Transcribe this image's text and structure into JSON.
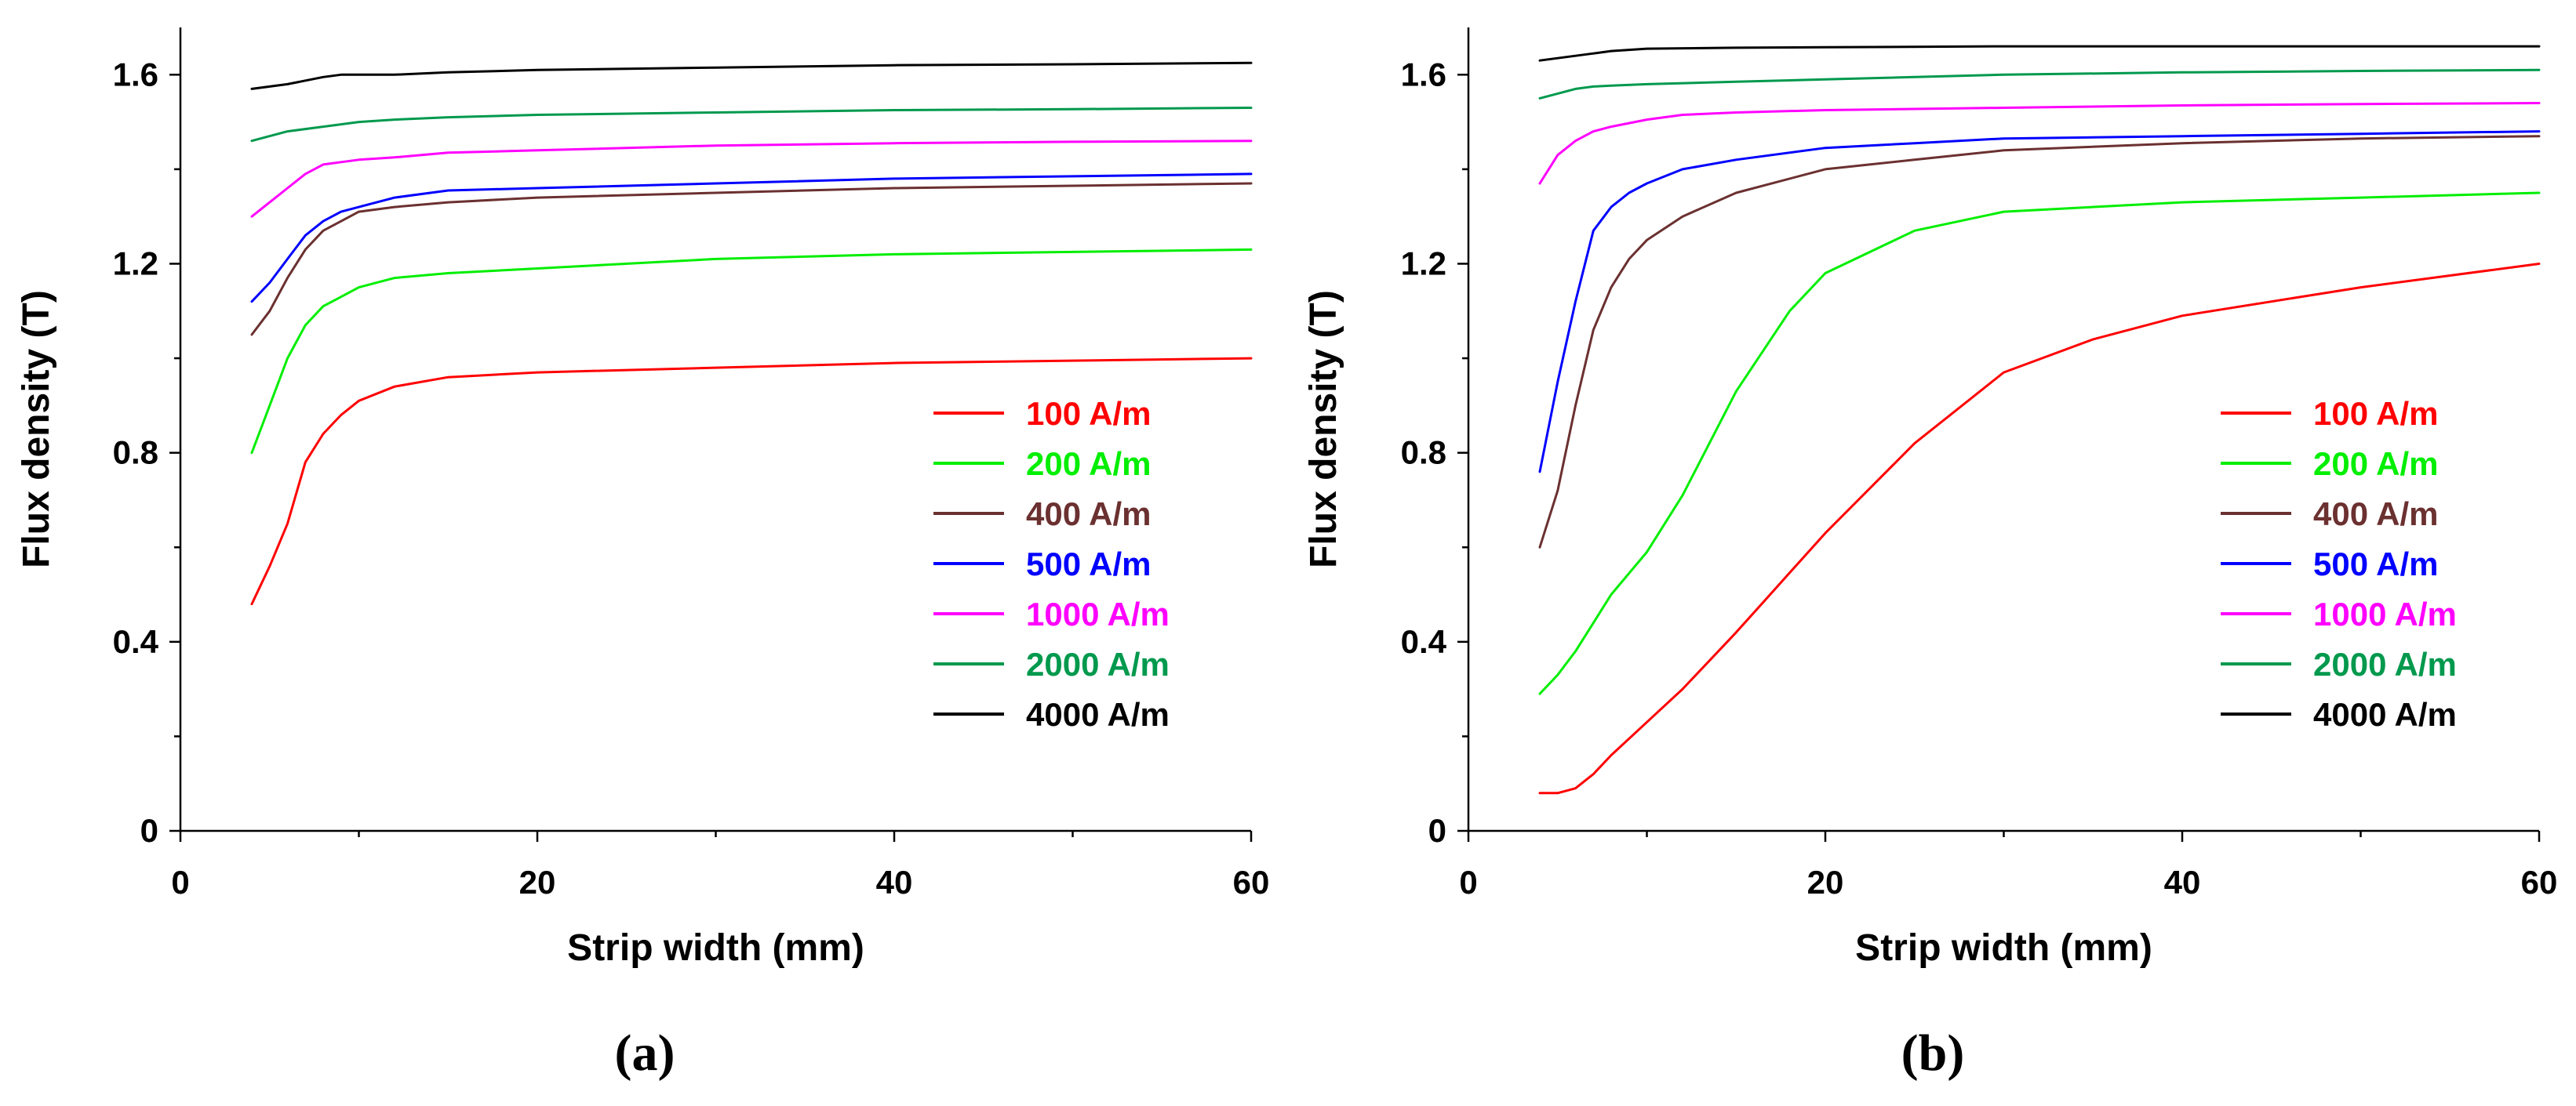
{
  "chart_data": [
    {
      "type": "line",
      "panel_label": "(a)",
      "xlabel": "Strip width (mm)",
      "ylabel": "Flux density (T)",
      "xlim": [
        0,
        60
      ],
      "ylim": [
        0,
        1.7
      ],
      "xticks": [
        0,
        20,
        40,
        60
      ],
      "xticks_minor": [
        10,
        30,
        50
      ],
      "yticks": [
        0,
        0.4,
        0.8,
        1.2,
        1.6
      ],
      "ytick_labels": [
        "0",
        "0.4",
        "0.8",
        "1.2",
        "1.6"
      ],
      "legend_position": "lower-right",
      "series": [
        {
          "name": "100 A/m",
          "color": "#ff0000",
          "x": [
            4,
            5,
            6,
            7,
            8,
            9,
            10,
            12,
            15,
            20,
            30,
            40,
            50,
            60
          ],
          "y": [
            0.48,
            0.56,
            0.65,
            0.78,
            0.84,
            0.88,
            0.91,
            0.94,
            0.96,
            0.97,
            0.98,
            0.99,
            0.995,
            1.0
          ]
        },
        {
          "name": "200 A/m",
          "color": "#00ee00",
          "x": [
            4,
            5,
            6,
            7,
            8,
            9,
            10,
            12,
            15,
            20,
            30,
            40,
            50,
            60
          ],
          "y": [
            0.8,
            0.9,
            1.0,
            1.07,
            1.11,
            1.13,
            1.15,
            1.17,
            1.18,
            1.19,
            1.21,
            1.22,
            1.225,
            1.23
          ]
        },
        {
          "name": "400 A/m",
          "color": "#6b3030",
          "x": [
            4,
            5,
            6,
            7,
            8,
            9,
            10,
            12,
            15,
            20,
            30,
            40,
            50,
            60
          ],
          "y": [
            1.05,
            1.1,
            1.17,
            1.23,
            1.27,
            1.29,
            1.31,
            1.32,
            1.33,
            1.34,
            1.35,
            1.36,
            1.365,
            1.37
          ]
        },
        {
          "name": "500 A/m",
          "color": "#0000ff",
          "x": [
            4,
            5,
            6,
            7,
            8,
            9,
            10,
            12,
            15,
            20,
            30,
            40,
            50,
            60
          ],
          "y": [
            1.12,
            1.16,
            1.21,
            1.26,
            1.29,
            1.31,
            1.32,
            1.34,
            1.355,
            1.36,
            1.37,
            1.38,
            1.385,
            1.39
          ]
        },
        {
          "name": "1000 A/m",
          "color": "#ff00ff",
          "x": [
            4,
            5,
            6,
            7,
            8,
            9,
            10,
            12,
            15,
            20,
            30,
            40,
            50,
            60
          ],
          "y": [
            1.3,
            1.33,
            1.36,
            1.39,
            1.41,
            1.415,
            1.42,
            1.425,
            1.435,
            1.44,
            1.45,
            1.455,
            1.458,
            1.46
          ]
        },
        {
          "name": "2000 A/m",
          "color": "#00994d",
          "x": [
            4,
            6,
            8,
            10,
            12,
            15,
            20,
            30,
            40,
            50,
            60
          ],
          "y": [
            1.46,
            1.48,
            1.49,
            1.5,
            1.505,
            1.51,
            1.515,
            1.52,
            1.525,
            1.527,
            1.53
          ]
        },
        {
          "name": "4000 A/m",
          "color": "#000000",
          "x": [
            4,
            6,
            8,
            9,
            10,
            12,
            15,
            20,
            30,
            40,
            50,
            60
          ],
          "y": [
            1.57,
            1.58,
            1.595,
            1.6,
            1.6,
            1.6,
            1.605,
            1.61,
            1.615,
            1.62,
            1.622,
            1.625
          ]
        }
      ]
    },
    {
      "type": "line",
      "panel_label": "(b)",
      "xlabel": "Strip width (mm)",
      "ylabel": "Flux density (T)",
      "xlim": [
        0,
        60
      ],
      "ylim": [
        0,
        1.7
      ],
      "xticks": [
        0,
        20,
        40,
        60
      ],
      "xticks_minor": [
        10,
        30,
        50
      ],
      "yticks": [
        0,
        0.4,
        0.8,
        1.2,
        1.6
      ],
      "ytick_labels": [
        "0",
        "0.4",
        "0.8",
        "1.2",
        "1.6"
      ],
      "legend_position": "lower-right",
      "series": [
        {
          "name": "100 A/m",
          "color": "#ff0000",
          "x": [
            4,
            5,
            6,
            7,
            8,
            10,
            12,
            15,
            20,
            25,
            30,
            35,
            40,
            50,
            60
          ],
          "y": [
            0.08,
            0.08,
            0.09,
            0.12,
            0.16,
            0.23,
            0.3,
            0.42,
            0.63,
            0.82,
            0.97,
            1.04,
            1.09,
            1.15,
            1.2
          ]
        },
        {
          "name": "200 A/m",
          "color": "#00ee00",
          "x": [
            4,
            5,
            6,
            7,
            8,
            10,
            12,
            15,
            18,
            20,
            25,
            30,
            40,
            50,
            60
          ],
          "y": [
            0.29,
            0.33,
            0.38,
            0.44,
            0.5,
            0.59,
            0.71,
            0.93,
            1.1,
            1.18,
            1.27,
            1.31,
            1.33,
            1.34,
            1.35
          ]
        },
        {
          "name": "400 A/m",
          "color": "#6b3030",
          "x": [
            4,
            5,
            6,
            7,
            8,
            9,
            10,
            12,
            15,
            20,
            25,
            30,
            40,
            50,
            60
          ],
          "y": [
            0.6,
            0.72,
            0.9,
            1.06,
            1.15,
            1.21,
            1.25,
            1.3,
            1.35,
            1.4,
            1.42,
            1.44,
            1.455,
            1.465,
            1.47
          ]
        },
        {
          "name": "500 A/m",
          "color": "#0000ff",
          "x": [
            4,
            5,
            6,
            7,
            8,
            9,
            10,
            12,
            15,
            20,
            25,
            30,
            40,
            50,
            60
          ],
          "y": [
            0.76,
            0.95,
            1.12,
            1.27,
            1.32,
            1.35,
            1.37,
            1.4,
            1.42,
            1.445,
            1.455,
            1.465,
            1.47,
            1.475,
            1.48
          ]
        },
        {
          "name": "1000 A/m",
          "color": "#ff00ff",
          "x": [
            4,
            5,
            6,
            7,
            8,
            10,
            12,
            15,
            20,
            30,
            40,
            50,
            60
          ],
          "y": [
            1.37,
            1.43,
            1.46,
            1.48,
            1.49,
            1.505,
            1.515,
            1.52,
            1.525,
            1.53,
            1.535,
            1.538,
            1.54
          ]
        },
        {
          "name": "2000 A/m",
          "color": "#00994d",
          "x": [
            4,
            5,
            6,
            7,
            8,
            10,
            15,
            20,
            30,
            40,
            50,
            60
          ],
          "y": [
            1.55,
            1.56,
            1.57,
            1.575,
            1.577,
            1.58,
            1.585,
            1.59,
            1.6,
            1.605,
            1.608,
            1.61
          ]
        },
        {
          "name": "4000 A/m",
          "color": "#000000",
          "x": [
            4,
            5,
            6,
            7,
            8,
            10,
            15,
            20,
            30,
            40,
            50,
            60
          ],
          "y": [
            1.63,
            1.635,
            1.64,
            1.645,
            1.65,
            1.655,
            1.657,
            1.658,
            1.66,
            1.66,
            1.66,
            1.66
          ]
        }
      ]
    }
  ]
}
